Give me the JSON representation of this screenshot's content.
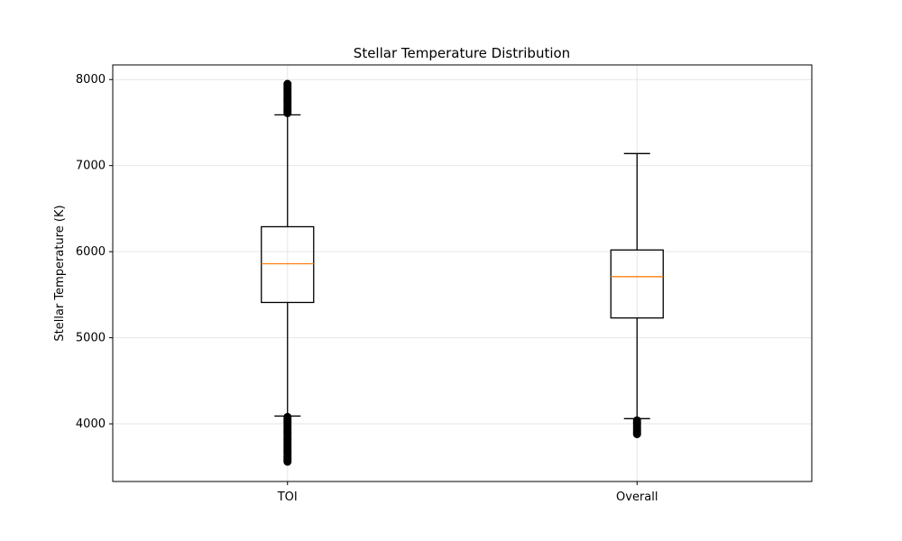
{
  "chart_data": {
    "type": "box",
    "title": "Stellar Temperature Distribution",
    "xlabel": "",
    "ylabel": "Stellar Temperature (K)",
    "ylim": [
      3330,
      8170
    ],
    "yticks": [
      4000,
      5000,
      6000,
      7000,
      8000
    ],
    "grid": true,
    "colors": {
      "box": "#000000",
      "median": "#ff7f0e",
      "grid": "#e6e6e6",
      "outlier": "#000000"
    },
    "categories": [
      "TOI",
      "Overall"
    ],
    "boxes": [
      {
        "category": "TOI",
        "whisker_low": 4090,
        "q1": 5410,
        "median": 5860,
        "q3": 6290,
        "whisker_high": 7590,
        "outliers_low": [
          3560,
          3580,
          3600,
          3620,
          3640,
          3660,
          3680,
          3700,
          3720,
          3740,
          3760,
          3780,
          3800,
          3820,
          3840,
          3860,
          3880,
          3900,
          3920,
          3940,
          3960,
          3980,
          4000,
          4020,
          4040,
          4060,
          4080
        ],
        "outliers_high": [
          7610,
          7630,
          7650,
          7670,
          7690,
          7710,
          7730,
          7750,
          7770,
          7790,
          7810,
          7830,
          7850,
          7870,
          7890,
          7910,
          7930,
          7950
        ]
      },
      {
        "category": "Overall",
        "whisker_low": 4060,
        "q1": 5230,
        "median": 5710,
        "q3": 6020,
        "whisker_high": 7140,
        "outliers_low": [
          3880,
          3900,
          3920,
          3940,
          3960,
          3980,
          4000,
          4020,
          4040
        ],
        "outliers_high": []
      }
    ]
  }
}
